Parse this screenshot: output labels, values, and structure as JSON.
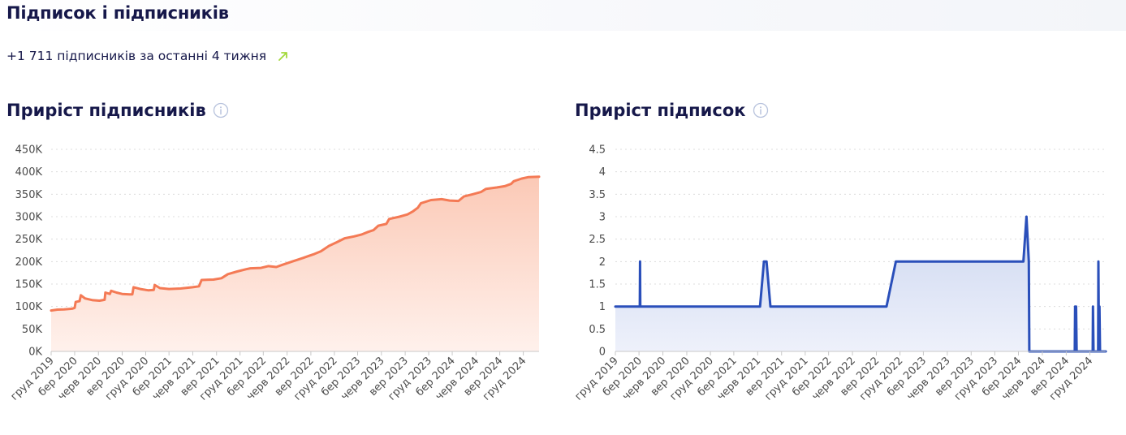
{
  "header": {
    "title": "Підписок і підписників"
  },
  "summary": {
    "text": "+1 711 підписників за останні 4 тижня",
    "trend_icon": "trend-up-arrow",
    "trend_color": "#a3d93b"
  },
  "chart_data": [
    {
      "type": "area",
      "title": "Приріст підписників",
      "info_icon": "info-circle-icon",
      "color": "#f47a55",
      "fill_top": "#fbc9b6",
      "fill_bottom": "#fff1ec",
      "ylim": [
        0,
        450000
      ],
      "yticks": [
        {
          "v": 0,
          "label": "0K"
        },
        {
          "v": 50000,
          "label": "50K"
        },
        {
          "v": 100000,
          "label": "100K"
        },
        {
          "v": 150000,
          "label": "150K"
        },
        {
          "v": 200000,
          "label": "200K"
        },
        {
          "v": 250000,
          "label": "250K"
        },
        {
          "v": 300000,
          "label": "300K"
        },
        {
          "v": 350000,
          "label": "350K"
        },
        {
          "v": 400000,
          "label": "400K"
        },
        {
          "v": 450000,
          "label": "450K"
        }
      ],
      "xlim": [
        "2019-12-01",
        "2025-01-31"
      ],
      "xticks": [
        {
          "x": "2019-12-01",
          "label": "груд 2019"
        },
        {
          "x": "2020-03-01",
          "label": "бер 2020"
        },
        {
          "x": "2020-06-01",
          "label": "черв 2020"
        },
        {
          "x": "2020-09-01",
          "label": "вер 2020"
        },
        {
          "x": "2020-12-01",
          "label": "груд 2020"
        },
        {
          "x": "2021-03-01",
          "label": "бер 2021"
        },
        {
          "x": "2021-06-01",
          "label": "черв 2021"
        },
        {
          "x": "2021-09-01",
          "label": "вер 2021"
        },
        {
          "x": "2021-12-01",
          "label": "груд 2021"
        },
        {
          "x": "2022-03-01",
          "label": "бер 2022"
        },
        {
          "x": "2022-06-01",
          "label": "черв 2022"
        },
        {
          "x": "2022-09-01",
          "label": "вер 2022"
        },
        {
          "x": "2022-12-01",
          "label": "груд 2022"
        },
        {
          "x": "2023-03-01",
          "label": "бер 2023"
        },
        {
          "x": "2023-06-01",
          "label": "черв 2023"
        },
        {
          "x": "2023-09-01",
          "label": "вер 2023"
        },
        {
          "x": "2023-12-01",
          "label": "груд 2023"
        },
        {
          "x": "2024-03-01",
          "label": "бер 2024"
        },
        {
          "x": "2024-06-01",
          "label": "черв 2024"
        },
        {
          "x": "2024-09-01",
          "label": "вер 2024"
        },
        {
          "x": "2024-12-01",
          "label": "груд 2024"
        }
      ],
      "points": [
        [
          "2019-12-01",
          91000
        ],
        [
          "2019-12-25",
          93000
        ],
        [
          "2020-01-20",
          93500
        ],
        [
          "2020-02-20",
          95000
        ],
        [
          "2020-03-01",
          97000
        ],
        [
          "2020-03-05",
          110000
        ],
        [
          "2020-03-20",
          112000
        ],
        [
          "2020-03-25",
          125000
        ],
        [
          "2020-04-10",
          118000
        ],
        [
          "2020-05-10",
          114000
        ],
        [
          "2020-06-05",
          113000
        ],
        [
          "2020-06-25",
          115000
        ],
        [
          "2020-06-28",
          131000
        ],
        [
          "2020-07-15",
          128000
        ],
        [
          "2020-07-20",
          135000
        ],
        [
          "2020-08-10",
          131000
        ],
        [
          "2020-09-01",
          128000
        ],
        [
          "2020-09-30",
          127000
        ],
        [
          "2020-10-10",
          127000
        ],
        [
          "2020-10-15",
          143000
        ],
        [
          "2020-11-10",
          139000
        ],
        [
          "2020-12-10",
          136000
        ],
        [
          "2021-01-01",
          137000
        ],
        [
          "2021-01-05",
          148000
        ],
        [
          "2021-01-25",
          141000
        ],
        [
          "2021-03-01",
          139000
        ],
        [
          "2021-04-15",
          140000
        ],
        [
          "2021-06-01",
          143000
        ],
        [
          "2021-06-25",
          145000
        ],
        [
          "2021-07-05",
          159000
        ],
        [
          "2021-08-20",
          160000
        ],
        [
          "2021-09-20",
          163000
        ],
        [
          "2021-10-15",
          172000
        ],
        [
          "2021-11-20",
          178000
        ],
        [
          "2021-12-25",
          183000
        ],
        [
          "2022-01-10",
          185000
        ],
        [
          "2022-02-20",
          186000
        ],
        [
          "2022-03-20",
          190000
        ],
        [
          "2022-04-20",
          188000
        ],
        [
          "2022-05-15",
          193000
        ],
        [
          "2022-06-20",
          200000
        ],
        [
          "2022-08-01",
          208000
        ],
        [
          "2022-09-15",
          217000
        ],
        [
          "2022-10-10",
          223000
        ],
        [
          "2022-11-10",
          235000
        ],
        [
          "2022-12-10",
          243000
        ],
        [
          "2023-01-10",
          252000
        ],
        [
          "2023-02-15",
          256000
        ],
        [
          "2023-03-15",
          260000
        ],
        [
          "2023-04-10",
          266000
        ],
        [
          "2023-05-01",
          270000
        ],
        [
          "2023-05-20",
          280000
        ],
        [
          "2023-06-20",
          284000
        ],
        [
          "2023-07-01",
          295000
        ],
        [
          "2023-08-10",
          300000
        ],
        [
          "2023-09-10",
          305000
        ],
        [
          "2023-10-01",
          312000
        ],
        [
          "2023-10-20",
          320000
        ],
        [
          "2023-11-01",
          330000
        ],
        [
          "2023-12-10",
          337000
        ],
        [
          "2024-01-20",
          339000
        ],
        [
          "2024-02-20",
          336000
        ],
        [
          "2024-03-25",
          335000
        ],
        [
          "2024-04-15",
          345000
        ],
        [
          "2024-05-20",
          350000
        ],
        [
          "2024-06-20",
          355000
        ],
        [
          "2024-07-10",
          362000
        ],
        [
          "2024-08-20",
          365000
        ],
        [
          "2024-09-20",
          368000
        ],
        [
          "2024-10-15",
          373000
        ],
        [
          "2024-10-25",
          379000
        ],
        [
          "2024-11-25",
          385000
        ],
        [
          "2024-12-20",
          388000
        ],
        [
          "2025-01-31",
          389000
        ]
      ]
    },
    {
      "type": "area",
      "title": "Приріст підписок",
      "info_icon": "info-circle-icon",
      "color": "#2a4fba",
      "fill_top": "#cdd7f0",
      "fill_bottom": "#eef1fb",
      "ylim": [
        0,
        4.5
      ],
      "yticks": [
        {
          "v": 0,
          "label": "0"
        },
        {
          "v": 0.5,
          "label": "0.5"
        },
        {
          "v": 1,
          "label": "1"
        },
        {
          "v": 1.5,
          "label": "1.5"
        },
        {
          "v": 2,
          "label": "2"
        },
        {
          "v": 2.5,
          "label": "2.5"
        },
        {
          "v": 3,
          "label": "3"
        },
        {
          "v": 3.5,
          "label": "3.5"
        },
        {
          "v": 4,
          "label": "4"
        },
        {
          "v": 4.5,
          "label": "4.5"
        }
      ],
      "xlim": [
        "2019-12-01",
        "2025-01-31"
      ],
      "xticks": [
        {
          "x": "2019-12-01",
          "label": "груд 2019"
        },
        {
          "x": "2020-03-01",
          "label": "бер 2020"
        },
        {
          "x": "2020-06-01",
          "label": "черв 2020"
        },
        {
          "x": "2020-09-01",
          "label": "вер 2020"
        },
        {
          "x": "2020-12-01",
          "label": "груд 2020"
        },
        {
          "x": "2021-03-01",
          "label": "бер 2021"
        },
        {
          "x": "2021-06-01",
          "label": "черв 2021"
        },
        {
          "x": "2021-09-01",
          "label": "вер 2021"
        },
        {
          "x": "2021-12-01",
          "label": "груд 2021"
        },
        {
          "x": "2022-03-01",
          "label": "бер 2022"
        },
        {
          "x": "2022-06-01",
          "label": "черв 2022"
        },
        {
          "x": "2022-09-01",
          "label": "вер 2022"
        },
        {
          "x": "2022-12-01",
          "label": "груд 2022"
        },
        {
          "x": "2023-03-01",
          "label": "бер 2023"
        },
        {
          "x": "2023-06-01",
          "label": "черв 2023"
        },
        {
          "x": "2023-09-01",
          "label": "вер 2023"
        },
        {
          "x": "2023-12-01",
          "label": "груд 2023"
        },
        {
          "x": "2024-03-01",
          "label": "бер 2024"
        },
        {
          "x": "2024-06-01",
          "label": "черв 2024"
        },
        {
          "x": "2024-09-01",
          "label": "вер 2024"
        },
        {
          "x": "2024-12-01",
          "label": "груд 2024"
        }
      ],
      "points": [
        [
          "2019-12-01",
          1
        ],
        [
          "2020-03-04",
          1
        ],
        [
          "2020-03-05",
          2
        ],
        [
          "2020-03-06",
          1
        ],
        [
          "2021-06-10",
          1
        ],
        [
          "2021-06-25",
          2
        ],
        [
          "2021-07-05",
          2
        ],
        [
          "2021-07-20",
          1
        ],
        [
          "2022-10-10",
          1
        ],
        [
          "2022-11-15",
          2
        ],
        [
          "2024-03-20",
          2
        ],
        [
          "2024-04-01",
          3
        ],
        [
          "2024-04-10",
          2
        ],
        [
          "2024-04-12",
          0
        ],
        [
          "2024-10-04",
          0
        ],
        [
          "2024-10-05",
          1
        ],
        [
          "2024-10-07",
          0
        ],
        [
          "2024-10-09",
          1
        ],
        [
          "2024-10-11",
          0
        ],
        [
          "2024-12-12",
          0
        ],
        [
          "2024-12-13",
          1
        ],
        [
          "2024-12-15",
          0
        ],
        [
          "2025-01-02",
          0
        ],
        [
          "2025-01-03",
          2
        ],
        [
          "2025-01-05",
          0
        ],
        [
          "2025-01-07",
          1
        ],
        [
          "2025-01-09",
          0
        ],
        [
          "2025-01-31",
          0
        ]
      ]
    }
  ]
}
